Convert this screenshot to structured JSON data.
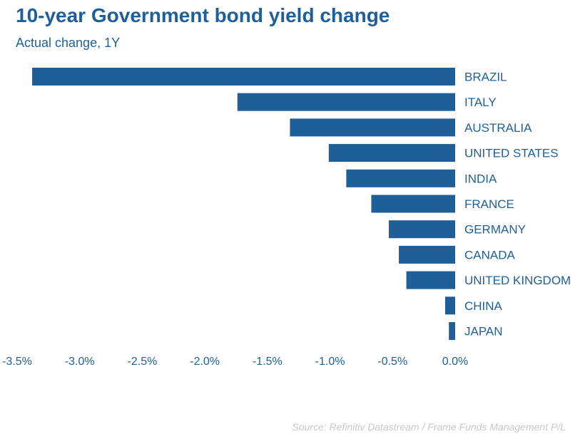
{
  "header": {
    "title": "10-year Government bond yield change",
    "subtitle": "Actual change, 1Y"
  },
  "footer": {
    "source": "Source: Refinitiv Datastream / Frame Funds Management P/L"
  },
  "colors": {
    "bar": "#1f5f99",
    "text": "#1f5f99",
    "source": "#c8c8c8"
  },
  "chart_data": {
    "type": "bar",
    "orientation": "horizontal",
    "title": "10-year Government bond yield change",
    "subtitle": "Actual change, 1Y",
    "categories": [
      "BRAZIL",
      "ITALY",
      "AUSTRALIA",
      "UNITED STATES",
      "INDIA",
      "FRANCE",
      "GERMANY",
      "CANADA",
      "UNITED KINGDOM",
      "CHINA",
      "JAPAN"
    ],
    "values": [
      -3.38,
      -1.74,
      -1.32,
      -1.01,
      -0.87,
      -0.67,
      -0.53,
      -0.45,
      -0.39,
      -0.08,
      -0.05
    ],
    "unit": "%",
    "xlim": [
      -3.5,
      0.0
    ],
    "xticks": [
      "-3.5%",
      "-3.0%",
      "-2.5%",
      "-2.0%",
      "-1.5%",
      "-1.0%",
      "-0.5%",
      "0.0%"
    ],
    "tick_values": [
      -3.5,
      -3.0,
      -2.5,
      -2.0,
      -1.5,
      -1.0,
      -0.5,
      0.0
    ],
    "grid": false,
    "legend": "none"
  }
}
